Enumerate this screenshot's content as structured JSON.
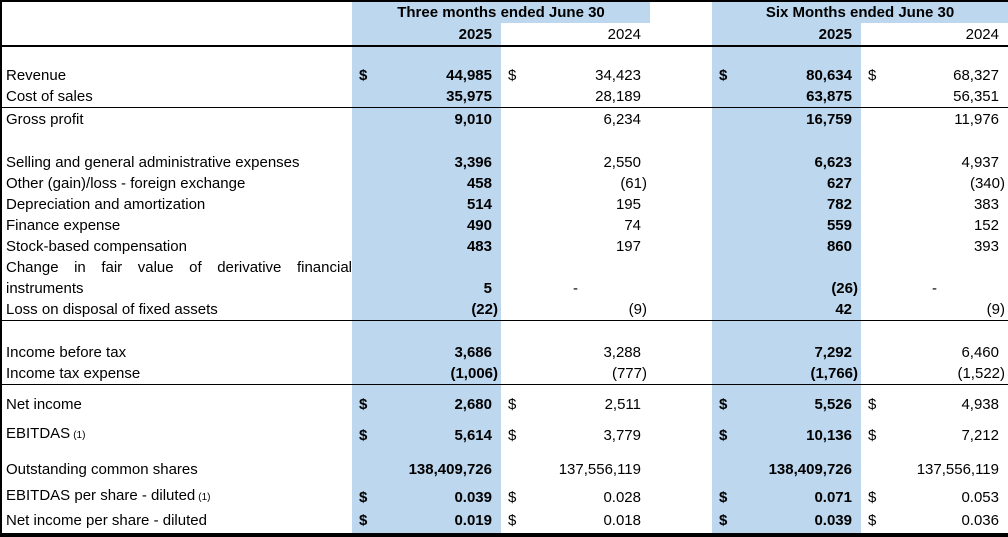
{
  "header": {
    "three_months": "Three months ended June 30",
    "six_months": "Six Months ended June 30",
    "y2025": "2025",
    "y2024": "2024"
  },
  "rows": [
    {
      "label": "Revenue",
      "q2025": {
        "sym": "$",
        "val": "44,985"
      },
      "q2024": {
        "sym": "$",
        "val": "34,423"
      },
      "s2025": {
        "sym": "$",
        "val": "80,634"
      },
      "s2024": {
        "sym": "$",
        "val": "68,327"
      }
    },
    {
      "label": "Cost of sales",
      "q2025": {
        "val": "35,975"
      },
      "q2024": {
        "val": "28,189"
      },
      "s2025": {
        "val": "63,875"
      },
      "s2024": {
        "val": "56,351"
      }
    },
    {
      "label": "Gross profit",
      "q2025": {
        "val": "9,010"
      },
      "q2024": {
        "val": "6,234"
      },
      "s2025": {
        "val": "16,759"
      },
      "s2024": {
        "val": "11,976"
      }
    },
    {
      "label": "Selling and general administrative expenses",
      "q2025": {
        "val": "3,396"
      },
      "q2024": {
        "val": "2,550"
      },
      "s2025": {
        "val": "6,623"
      },
      "s2024": {
        "val": "4,937"
      }
    },
    {
      "label": "Other (gain)/loss - foreign exchange",
      "q2025": {
        "val": "458"
      },
      "q2024": {
        "val": "(61)"
      },
      "s2025": {
        "val": "627"
      },
      "s2024": {
        "val": "(340)"
      }
    },
    {
      "label": "Depreciation and amortization",
      "q2025": {
        "val": "514"
      },
      "q2024": {
        "val": "195"
      },
      "s2025": {
        "val": "782"
      },
      "s2024": {
        "val": "383"
      }
    },
    {
      "label": "Finance expense",
      "q2025": {
        "val": "490"
      },
      "q2024": {
        "val": "74"
      },
      "s2025": {
        "val": "559"
      },
      "s2024": {
        "val": "152"
      }
    },
    {
      "label": "Stock-based compensation",
      "q2025": {
        "val": "483"
      },
      "q2024": {
        "val": "197"
      },
      "s2025": {
        "val": "860"
      },
      "s2024": {
        "val": "393"
      }
    },
    {
      "label": "Change in fair value of derivative financial"
    },
    {
      "label": "instruments",
      "q2025": {
        "val": "5"
      },
      "q2024": {
        "val": "-"
      },
      "s2025": {
        "val": "(26)"
      },
      "s2024": {
        "val": "-"
      }
    },
    {
      "label": "Loss on disposal of fixed assets",
      "q2025": {
        "val": "(22)"
      },
      "q2024": {
        "val": "(9)"
      },
      "s2025": {
        "val": "42"
      },
      "s2024": {
        "val": "(9)"
      }
    },
    {
      "label": "Income before tax",
      "q2025": {
        "val": "3,686"
      },
      "q2024": {
        "val": "3,288"
      },
      "s2025": {
        "val": "7,292"
      },
      "s2024": {
        "val": "6,460"
      }
    },
    {
      "label": "Income tax expense",
      "q2025": {
        "val": "(1,006)"
      },
      "q2024": {
        "val": "(777)"
      },
      "s2025": {
        "val": "(1,766)"
      },
      "s2024": {
        "val": "(1,522)"
      }
    },
    {
      "label": "Net income",
      "q2025": {
        "sym": "$",
        "val": "2,680"
      },
      "q2024": {
        "sym": "$",
        "val": "2,511"
      },
      "s2025": {
        "sym": "$",
        "val": "5,526"
      },
      "s2024": {
        "sym": "$",
        "val": "4,938"
      }
    },
    {
      "label": "EBITDAS",
      "sup": "(1)",
      "q2025": {
        "sym": "$",
        "val": "5,614"
      },
      "q2024": {
        "sym": "$",
        "val": "3,779"
      },
      "s2025": {
        "sym": "$",
        "val": "10,136"
      },
      "s2024": {
        "sym": "$",
        "val": "7,212"
      }
    },
    {
      "label": "Outstanding common shares",
      "q2025": {
        "val": "138,409,726"
      },
      "q2024": {
        "val": "137,556,119"
      },
      "s2025": {
        "val": "138,409,726"
      },
      "s2024": {
        "val": "137,556,119"
      }
    },
    {
      "label": "EBITDAS per share - diluted",
      "sup": "(1)",
      "q2025": {
        "sym": "$",
        "val": "0.039"
      },
      "q2024": {
        "sym": "$",
        "val": "0.028"
      },
      "s2025": {
        "sym": "$",
        "val": "0.071"
      },
      "s2024": {
        "sym": "$",
        "val": "0.053"
      }
    },
    {
      "label": "Net income per share - diluted",
      "q2025": {
        "sym": "$",
        "val": "0.019"
      },
      "q2024": {
        "sym": "$",
        "val": "0.018"
      },
      "s2025": {
        "sym": "$",
        "val": "0.039"
      },
      "s2024": {
        "sym": "$",
        "val": "0.036"
      }
    }
  ],
  "colors": {
    "highlight_blue": "#BDD7EE",
    "border_black": "#000000",
    "background": "#FFFFFF"
  }
}
